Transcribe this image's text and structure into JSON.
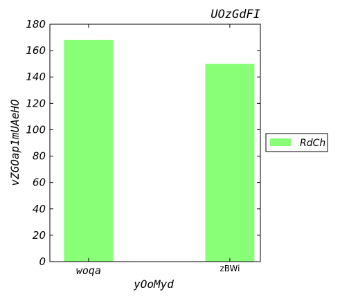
{
  "chart_data": {
    "type": "bar",
    "title": "UOzGdFI",
    "xlabel": "yOoMyd",
    "ylabel": "vZGOap1mUAeHO",
    "categories": [
      "woqa",
      "zBWi"
    ],
    "series": [
      {
        "name": "RdCh",
        "values": [
          168,
          150
        ],
        "color": "#88ff77"
      }
    ],
    "ylim": [
      0,
      180
    ],
    "yticks": [
      0,
      20,
      40,
      60,
      80,
      100,
      120,
      140,
      160,
      180
    ],
    "grid": false,
    "legend_position": "right"
  }
}
